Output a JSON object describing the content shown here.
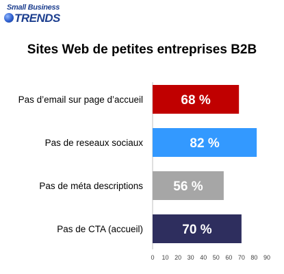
{
  "logo": {
    "line1": "Small Business",
    "line2": "TRENDS"
  },
  "chart_data": {
    "type": "bar",
    "orientation": "horizontal",
    "title": "Sites Web de petites entreprises B2B",
    "categories": [
      "Pas d’email sur page d’accueil",
      "Pas de reseaux sociaux",
      "Pas de méta descriptions",
      "Pas de CTA (accueil)"
    ],
    "values": [
      68,
      82,
      56,
      70
    ],
    "data_labels": [
      "68 %",
      "82 %",
      "56 %",
      "70 %"
    ],
    "bar_colors": [
      "#c00000",
      "#3399ff",
      "#a6a6a6",
      "#2e2e5e"
    ],
    "xlim": [
      0,
      90
    ],
    "xticks": [
      0,
      10,
      20,
      30,
      40,
      50,
      60,
      70,
      80,
      90
    ],
    "grid": false,
    "legend": "none"
  }
}
